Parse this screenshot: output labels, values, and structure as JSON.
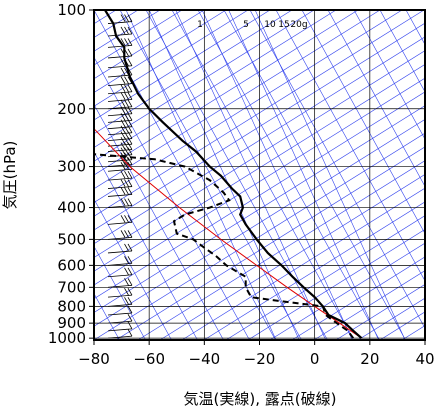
{
  "chart_data": {
    "type": "skew-t",
    "xlabel": "気温(実線), 露点(破線)",
    "ylabel": "気圧(hPa)",
    "xlim": [
      -80,
      40
    ],
    "ylim": [
      1013,
      100
    ],
    "y_scale": "log",
    "grid": true,
    "x_ticks": [
      -80,
      -60,
      -40,
      -20,
      0,
      20,
      40
    ],
    "x_tick_labels": [
      "−80",
      "−60",
      "−40",
      "−20",
      "0",
      "20",
      "40"
    ],
    "y_ticks": [
      100,
      200,
      300,
      400,
      500,
      600,
      700,
      800,
      900,
      1000
    ],
    "y_tick_labels": [
      "100",
      "200",
      "300",
      "400",
      "500",
      "600",
      "700",
      "800",
      "900",
      "1000"
    ],
    "mixing_ratio_labels": [
      "1",
      "5",
      "10",
      "15",
      "20g"
    ],
    "colors": {
      "temperature": "#000000",
      "dewpoint": "#000000",
      "reference": "#e00000",
      "background_lines": "#3344ee",
      "grid": "#000000",
      "wind_barbs": "#000000"
    },
    "series": [
      {
        "style": "solid",
        "points": [
          {
            "p": 1000,
            "t": 17
          },
          {
            "p": 950,
            "t": 14
          },
          {
            "p": 900,
            "t": 11
          },
          {
            "p": 850,
            "t": 5
          },
          {
            "p": 800,
            "t": 3
          },
          {
            "p": 750,
            "t": 0
          },
          {
            "p": 700,
            "t": -4
          },
          {
            "p": 650,
            "t": -8
          },
          {
            "p": 600,
            "t": -12
          },
          {
            "p": 550,
            "t": -17
          },
          {
            "p": 500,
            "t": -21
          },
          {
            "p": 450,
            "t": -25
          },
          {
            "p": 420,
            "t": -27
          },
          {
            "p": 400,
            "t": -26
          },
          {
            "p": 370,
            "t": -27
          },
          {
            "p": 350,
            "t": -30
          },
          {
            "p": 320,
            "t": -34
          },
          {
            "p": 300,
            "t": -38
          },
          {
            "p": 270,
            "t": -43
          },
          {
            "p": 250,
            "t": -48
          },
          {
            "p": 220,
            "t": -55
          },
          {
            "p": 200,
            "t": -60
          },
          {
            "p": 180,
            "t": -64
          },
          {
            "p": 160,
            "t": -67
          },
          {
            "p": 140,
            "t": -69
          },
          {
            "p": 130,
            "t": -69
          },
          {
            "p": 120,
            "t": -72
          },
          {
            "p": 110,
            "t": -73
          },
          {
            "p": 100,
            "t": -76
          }
        ]
      },
      {
        "style": "dashed",
        "points": [
          {
            "p": 1000,
            "t": 14
          },
          {
            "p": 950,
            "t": 12
          },
          {
            "p": 900,
            "t": 8
          },
          {
            "p": 850,
            "t": 4
          },
          {
            "p": 800,
            "t": 3
          },
          {
            "p": 770,
            "t": -13
          },
          {
            "p": 750,
            "t": -23
          },
          {
            "p": 700,
            "t": -25
          },
          {
            "p": 650,
            "t": -25
          },
          {
            "p": 600,
            "t": -32
          },
          {
            "p": 560,
            "t": -36
          },
          {
            "p": 530,
            "t": -40
          },
          {
            "p": 500,
            "t": -44
          },
          {
            "p": 480,
            "t": -50
          },
          {
            "p": 440,
            "t": -51
          },
          {
            "p": 420,
            "t": -47
          },
          {
            "p": 400,
            "t": -38
          },
          {
            "p": 380,
            "t": -31
          },
          {
            "p": 360,
            "t": -33
          },
          {
            "p": 330,
            "t": -38
          },
          {
            "p": 300,
            "t": -47
          },
          {
            "p": 285,
            "t": -58
          },
          {
            "p": 275,
            "t": -80
          }
        ]
      },
      {
        "style": "thin-red",
        "points": [
          {
            "p": 1000,
            "t": 17
          },
          {
            "p": 900,
            "t": 9
          },
          {
            "p": 800,
            "t": 0
          },
          {
            "p": 700,
            "t": -10
          },
          {
            "p": 600,
            "t": -21
          },
          {
            "p": 500,
            "t": -34
          },
          {
            "p": 400,
            "t": -49
          },
          {
            "p": 300,
            "t": -67
          },
          {
            "p": 230,
            "t": -80
          }
        ]
      }
    ],
    "wind_barbs_pressures": [
      1000,
      950,
      900,
      850,
      800,
      750,
      700,
      650,
      600,
      550,
      500,
      450,
      400,
      370,
      350,
      330,
      310,
      300,
      290,
      280,
      270,
      260,
      250,
      240,
      230,
      220,
      210,
      200,
      190,
      180,
      170,
      160,
      150,
      140,
      130,
      120,
      110,
      100
    ]
  }
}
